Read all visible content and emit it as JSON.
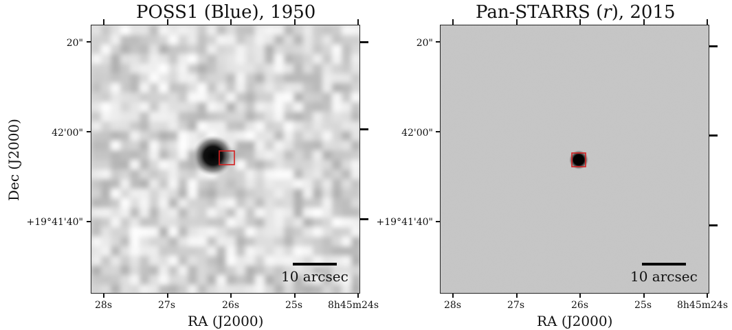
{
  "panels": [
    {
      "title": "POSS1 (Blue), 1950",
      "scale_label": "10 arcsec",
      "ra_ticks": [
        "28s",
        "27s",
        "26s",
        "25s",
        "8h45m24s"
      ],
      "dec_ticks": [
        "20\"",
        "42'00\"",
        "+19°41'40\""
      ],
      "xlabel": "RA (J2000)"
    },
    {
      "title_main": "Pan-STARRS (",
      "title_italic": "r",
      "title_end": "), 2015",
      "scale_label": "10 arcsec",
      "ra_ticks": [
        "28s",
        "27s",
        "26s",
        "25s",
        "8h45m24s"
      ],
      "dec_ticks": [
        "20\"",
        "42'00\"",
        "+19°41'40\""
      ],
      "xlabel": "RA (J2000)"
    }
  ],
  "ylabel": "Dec (J2000)",
  "colors": {
    "marker": "#d42020",
    "frame": "#222222"
  }
}
